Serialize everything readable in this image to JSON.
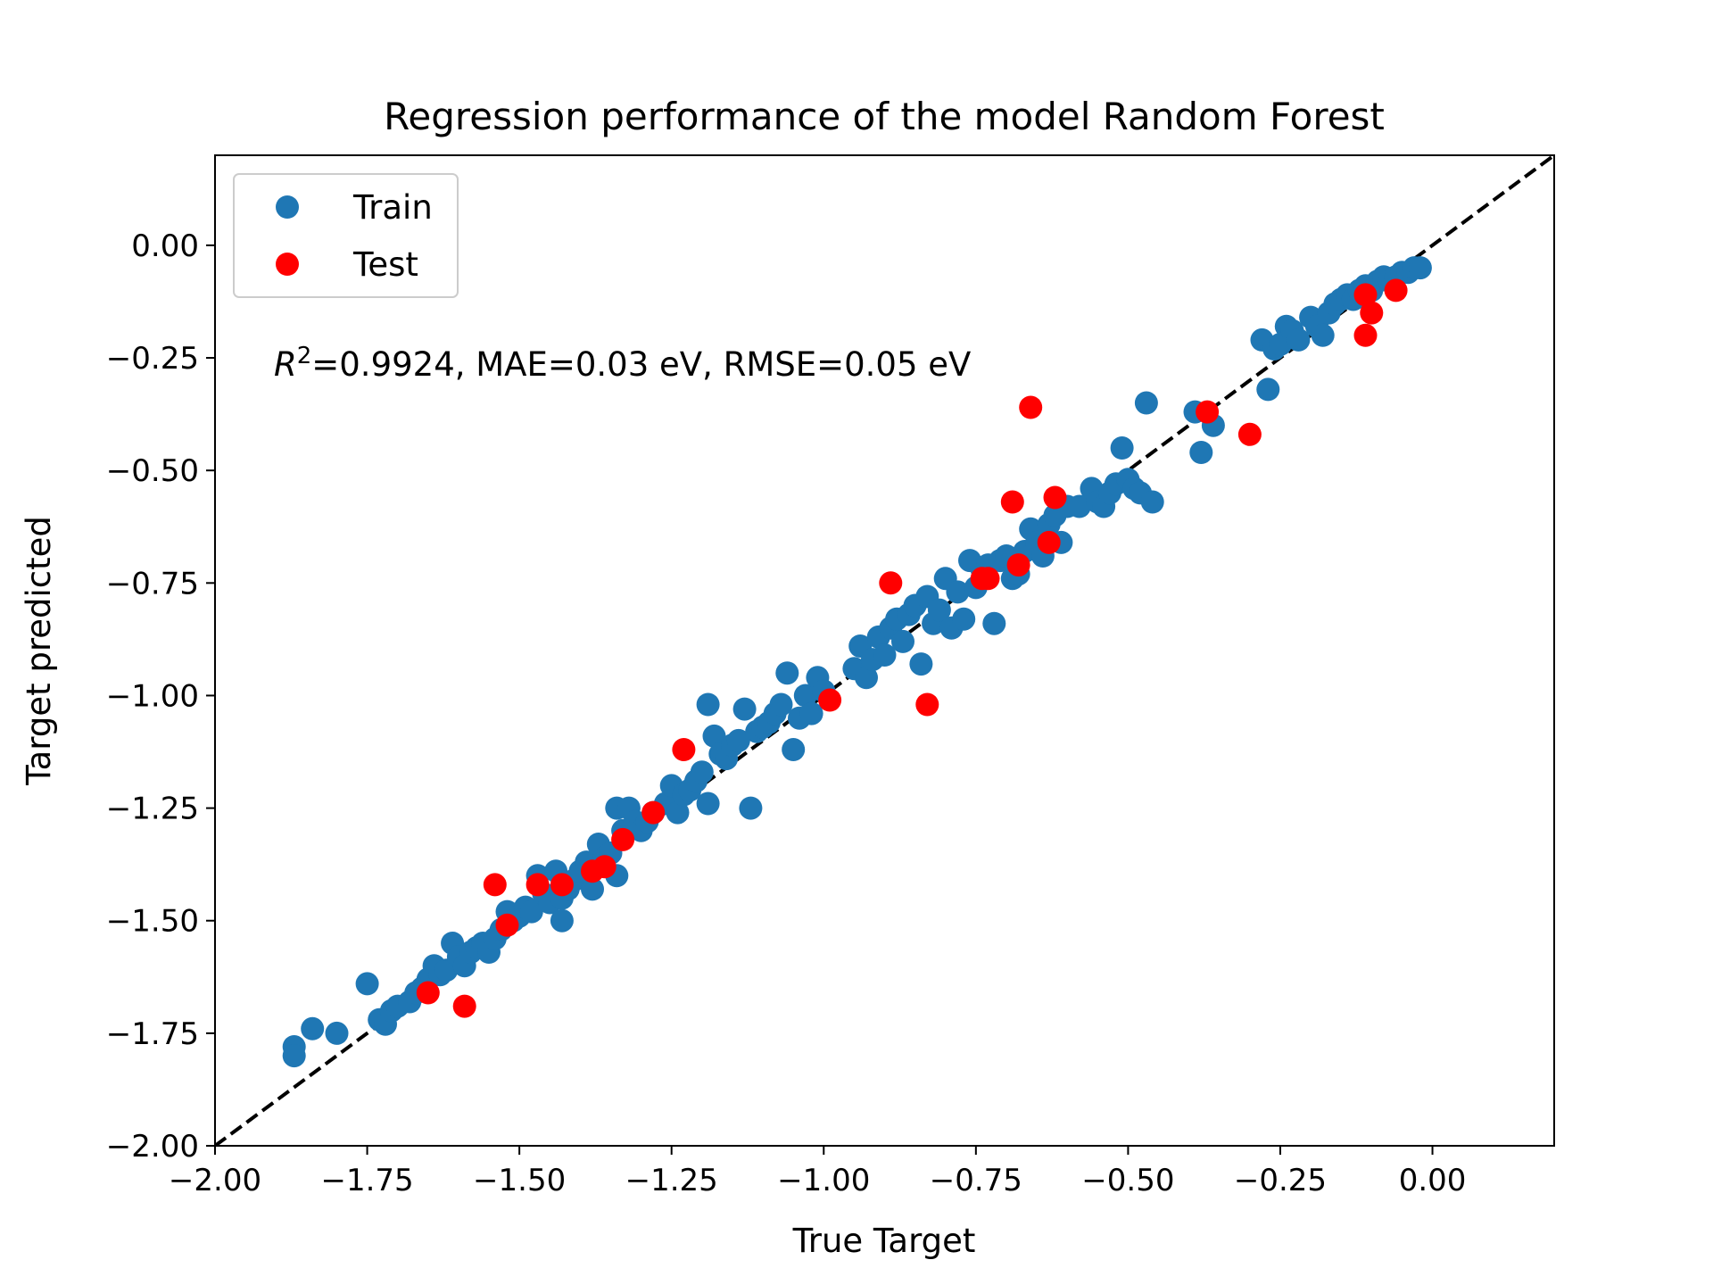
{
  "chart_data": {
    "type": "scatter",
    "title": "Regression performance of the model Random Forest",
    "xlabel": "True Target",
    "ylabel": "Target predicted",
    "xlim": [
      -2.0,
      0.2
    ],
    "ylim": [
      -2.0,
      0.2
    ],
    "xticks": [
      "−2.00",
      "−1.75",
      "−1.50",
      "−1.25",
      "−1.00",
      "−0.75",
      "−0.50",
      "−0.25",
      "0.00"
    ],
    "xtick_values": [
      -2.0,
      -1.75,
      -1.5,
      -1.25,
      -1.0,
      -0.75,
      -0.5,
      -0.25,
      0.0
    ],
    "yticks": [
      "−2.00",
      "−1.75",
      "−1.50",
      "−1.25",
      "−1.00",
      "−0.75",
      "−0.50",
      "−0.25",
      "0.00"
    ],
    "ytick_values": [
      -2.0,
      -1.75,
      -1.5,
      -1.25,
      -1.0,
      -0.75,
      -0.5,
      -0.25,
      0.0
    ],
    "grid": false,
    "legend": {
      "position": "top-left",
      "entries": [
        "Train",
        "Test"
      ]
    },
    "annotation": {
      "r2_symbol": "R",
      "r2_sup": "2",
      "text": "=0.9924, MAE=0.03 eV, RMSE=0.05 eV"
    },
    "reference_line": {
      "style": "dashed",
      "color": "#000000",
      "from": [
        -2.0,
        -2.0
      ],
      "to": [
        0.2,
        0.2
      ]
    },
    "colors": {
      "train": "#1f77b4",
      "test": "#ff0000"
    },
    "series": [
      {
        "name": "Train",
        "color": "#1f77b4",
        "points": [
          [
            -1.87,
            -1.78
          ],
          [
            -1.87,
            -1.8
          ],
          [
            -1.84,
            -1.74
          ],
          [
            -1.8,
            -1.75
          ],
          [
            -1.75,
            -1.64
          ],
          [
            -1.73,
            -1.72
          ],
          [
            -1.72,
            -1.73
          ],
          [
            -1.71,
            -1.7
          ],
          [
            -1.7,
            -1.69
          ],
          [
            -1.68,
            -1.68
          ],
          [
            -1.67,
            -1.66
          ],
          [
            -1.66,
            -1.65
          ],
          [
            -1.65,
            -1.63
          ],
          [
            -1.64,
            -1.6
          ],
          [
            -1.63,
            -1.62
          ],
          [
            -1.62,
            -1.61
          ],
          [
            -1.61,
            -1.55
          ],
          [
            -1.6,
            -1.58
          ],
          [
            -1.59,
            -1.6
          ],
          [
            -1.58,
            -1.57
          ],
          [
            -1.57,
            -1.56
          ],
          [
            -1.56,
            -1.55
          ],
          [
            -1.55,
            -1.57
          ],
          [
            -1.54,
            -1.54
          ],
          [
            -1.53,
            -1.52
          ],
          [
            -1.52,
            -1.48
          ],
          [
            -1.51,
            -1.5
          ],
          [
            -1.5,
            -1.49
          ],
          [
            -1.49,
            -1.47
          ],
          [
            -1.48,
            -1.48
          ],
          [
            -1.47,
            -1.4
          ],
          [
            -1.46,
            -1.44
          ],
          [
            -1.45,
            -1.46
          ],
          [
            -1.44,
            -1.39
          ],
          [
            -1.43,
            -1.5
          ],
          [
            -1.43,
            -1.45
          ],
          [
            -1.42,
            -1.43
          ],
          [
            -1.41,
            -1.41
          ],
          [
            -1.4,
            -1.39
          ],
          [
            -1.39,
            -1.37
          ],
          [
            -1.38,
            -1.43
          ],
          [
            -1.37,
            -1.33
          ],
          [
            -1.36,
            -1.36
          ],
          [
            -1.35,
            -1.35
          ],
          [
            -1.34,
            -1.4
          ],
          [
            -1.34,
            -1.25
          ],
          [
            -1.33,
            -1.3
          ],
          [
            -1.32,
            -1.25
          ],
          [
            -1.31,
            -1.28
          ],
          [
            -1.3,
            -1.3
          ],
          [
            -1.29,
            -1.28
          ],
          [
            -1.28,
            -1.26
          ],
          [
            -1.26,
            -1.24
          ],
          [
            -1.25,
            -1.2
          ],
          [
            -1.24,
            -1.26
          ],
          [
            -1.23,
            -1.22
          ],
          [
            -1.22,
            -1.21
          ],
          [
            -1.21,
            -1.19
          ],
          [
            -1.2,
            -1.17
          ],
          [
            -1.19,
            -1.24
          ],
          [
            -1.19,
            -1.02
          ],
          [
            -1.18,
            -1.09
          ],
          [
            -1.17,
            -1.13
          ],
          [
            -1.16,
            -1.14
          ],
          [
            -1.15,
            -1.11
          ],
          [
            -1.14,
            -1.1
          ],
          [
            -1.13,
            -1.03
          ],
          [
            -1.12,
            -1.25
          ],
          [
            -1.11,
            -1.08
          ],
          [
            -1.1,
            -1.07
          ],
          [
            -1.09,
            -1.06
          ],
          [
            -1.08,
            -1.04
          ],
          [
            -1.07,
            -1.02
          ],
          [
            -1.06,
            -0.95
          ],
          [
            -1.05,
            -1.12
          ],
          [
            -1.04,
            -1.05
          ],
          [
            -1.03,
            -1.0
          ],
          [
            -1.02,
            -1.04
          ],
          [
            -1.01,
            -0.96
          ],
          [
            -1.0,
            -0.99
          ],
          [
            -0.95,
            -0.94
          ],
          [
            -0.94,
            -0.89
          ],
          [
            -0.93,
            -0.96
          ],
          [
            -0.92,
            -0.92
          ],
          [
            -0.91,
            -0.87
          ],
          [
            -0.9,
            -0.91
          ],
          [
            -0.89,
            -0.85
          ],
          [
            -0.88,
            -0.83
          ],
          [
            -0.87,
            -0.88
          ],
          [
            -0.86,
            -0.82
          ],
          [
            -0.85,
            -0.8
          ],
          [
            -0.84,
            -0.93
          ],
          [
            -0.83,
            -0.78
          ],
          [
            -0.82,
            -0.84
          ],
          [
            -0.81,
            -0.81
          ],
          [
            -0.8,
            -0.74
          ],
          [
            -0.79,
            -0.85
          ],
          [
            -0.78,
            -0.77
          ],
          [
            -0.77,
            -0.83
          ],
          [
            -0.76,
            -0.7
          ],
          [
            -0.75,
            -0.76
          ],
          [
            -0.74,
            -0.72
          ],
          [
            -0.73,
            -0.71
          ],
          [
            -0.72,
            -0.84
          ],
          [
            -0.71,
            -0.7
          ],
          [
            -0.7,
            -0.69
          ],
          [
            -0.69,
            -0.74
          ],
          [
            -0.68,
            -0.73
          ],
          [
            -0.67,
            -0.68
          ],
          [
            -0.66,
            -0.63
          ],
          [
            -0.65,
            -0.66
          ],
          [
            -0.64,
            -0.69
          ],
          [
            -0.63,
            -0.62
          ],
          [
            -0.62,
            -0.6
          ],
          [
            -0.61,
            -0.66
          ],
          [
            -0.6,
            -0.58
          ],
          [
            -0.58,
            -0.58
          ],
          [
            -0.56,
            -0.54
          ],
          [
            -0.55,
            -0.57
          ],
          [
            -0.54,
            -0.58
          ],
          [
            -0.53,
            -0.55
          ],
          [
            -0.52,
            -0.53
          ],
          [
            -0.51,
            -0.45
          ],
          [
            -0.5,
            -0.52
          ],
          [
            -0.49,
            -0.54
          ],
          [
            -0.48,
            -0.55
          ],
          [
            -0.47,
            -0.35
          ],
          [
            -0.46,
            -0.57
          ],
          [
            -0.39,
            -0.37
          ],
          [
            -0.38,
            -0.46
          ],
          [
            -0.36,
            -0.4
          ],
          [
            -0.28,
            -0.21
          ],
          [
            -0.27,
            -0.32
          ],
          [
            -0.26,
            -0.23
          ],
          [
            -0.25,
            -0.22
          ],
          [
            -0.24,
            -0.18
          ],
          [
            -0.23,
            -0.19
          ],
          [
            -0.22,
            -0.21
          ],
          [
            -0.2,
            -0.16
          ],
          [
            -0.19,
            -0.18
          ],
          [
            -0.18,
            -0.2
          ],
          [
            -0.17,
            -0.15
          ],
          [
            -0.16,
            -0.13
          ],
          [
            -0.15,
            -0.12
          ],
          [
            -0.14,
            -0.11
          ],
          [
            -0.13,
            -0.12
          ],
          [
            -0.12,
            -0.1
          ],
          [
            -0.11,
            -0.09
          ],
          [
            -0.1,
            -0.1
          ],
          [
            -0.09,
            -0.08
          ],
          [
            -0.08,
            -0.07
          ],
          [
            -0.07,
            -0.08
          ],
          [
            -0.06,
            -0.07
          ],
          [
            -0.05,
            -0.06
          ],
          [
            -0.04,
            -0.06
          ],
          [
            -0.03,
            -0.05
          ],
          [
            -0.02,
            -0.05
          ]
        ]
      },
      {
        "name": "Test",
        "color": "#ff0000",
        "points": [
          [
            -1.65,
            -1.66
          ],
          [
            -1.59,
            -1.69
          ],
          [
            -1.54,
            -1.42
          ],
          [
            -1.52,
            -1.51
          ],
          [
            -1.47,
            -1.42
          ],
          [
            -1.43,
            -1.42
          ],
          [
            -1.38,
            -1.39
          ],
          [
            -1.36,
            -1.38
          ],
          [
            -1.33,
            -1.32
          ],
          [
            -1.28,
            -1.26
          ],
          [
            -1.23,
            -1.12
          ],
          [
            -0.99,
            -1.01
          ],
          [
            -0.89,
            -0.75
          ],
          [
            -0.83,
            -1.02
          ],
          [
            -0.74,
            -0.74
          ],
          [
            -0.73,
            -0.74
          ],
          [
            -0.69,
            -0.57
          ],
          [
            -0.68,
            -0.71
          ],
          [
            -0.66,
            -0.36
          ],
          [
            -0.63,
            -0.66
          ],
          [
            -0.62,
            -0.56
          ],
          [
            -0.37,
            -0.37
          ],
          [
            -0.3,
            -0.42
          ],
          [
            -0.11,
            -0.11
          ],
          [
            -0.11,
            -0.2
          ],
          [
            -0.1,
            -0.15
          ],
          [
            -0.06,
            -0.1
          ]
        ]
      }
    ]
  }
}
